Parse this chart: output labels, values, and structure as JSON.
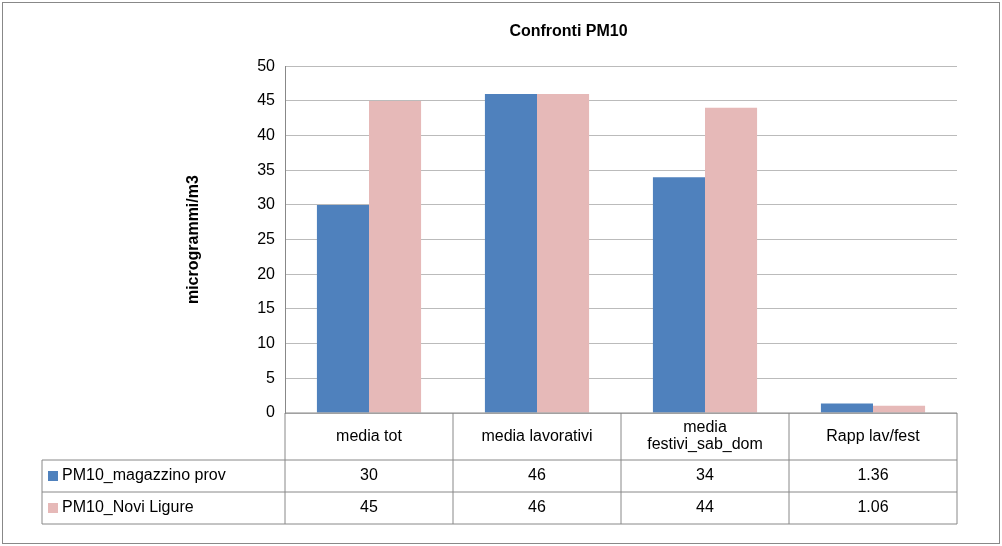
{
  "chart_data": {
    "type": "bar",
    "title": "Confronti PM10",
    "ylabel": "microgrammi/m3",
    "categories": [
      "media tot",
      "media lavorativi",
      "media festivi_sab_dom",
      "Rapp lav/fest"
    ],
    "series": [
      {
        "name": "PM10_magazzino prov",
        "color": "#4f81bd",
        "values": [
          30,
          46,
          34,
          1.36
        ]
      },
      {
        "name": "PM10_Novi Ligure",
        "color": "#e6b9b8",
        "values": [
          45,
          46,
          44,
          1.06
        ]
      }
    ],
    "ylim": [
      0,
      50
    ],
    "yticks": [
      0,
      5,
      10,
      15,
      20,
      25,
      30,
      35,
      40,
      45,
      50
    ],
    "grid": "y",
    "legend": "bottom left",
    "data_labels": true
  }
}
